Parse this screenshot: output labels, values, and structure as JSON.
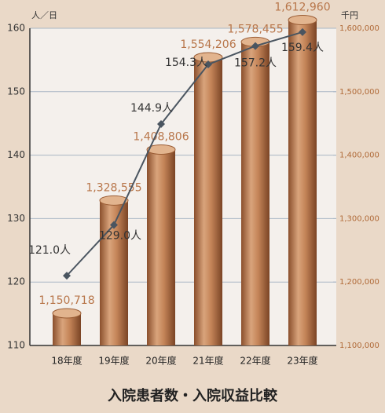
{
  "chart_data": {
    "type": "combo",
    "title": "入院患者数・入院収益比較",
    "y_axis_label": "人／日",
    "y2_axis_label": "千円",
    "categories": [
      "18年度",
      "19年度",
      "20年度",
      "21年度",
      "22年度",
      "23年度"
    ],
    "ylim": [
      110,
      160
    ],
    "yticks": [
      110,
      120,
      130,
      140,
      150,
      160
    ],
    "y2lim": [
      1100000,
      1600000
    ],
    "y2ticks": [
      {
        "value": 1100000,
        "label": "1,100,000"
      },
      {
        "value": 1200000,
        "label": "1,200,000"
      },
      {
        "value": 1300000,
        "label": "1,300,000"
      },
      {
        "value": 1400000,
        "label": "1,400,000"
      },
      {
        "value": 1500000,
        "label": "1,500,000"
      },
      {
        "value": 1600000,
        "label": "1,600,000"
      }
    ],
    "grid": true,
    "series": [
      {
        "type": "bar",
        "axis": "y2",
        "color": "#b8764a",
        "values": [
          1150718,
          1328555,
          1408806,
          1554206,
          1578455,
          1612960
        ],
        "value_labels": [
          "1,150,718",
          "1,328,555",
          "1,408,806",
          "1,554,206",
          "1,578,455",
          "1,612,960"
        ]
      },
      {
        "type": "line",
        "axis": "y",
        "color": "#4a5560",
        "values": [
          121.0,
          129.0,
          144.9,
          154.3,
          157.2,
          159.4
        ],
        "value_labels": [
          "121.0人",
          "129.0人",
          "144.9人",
          "154.3人",
          "157.2人",
          "159.4人"
        ]
      }
    ]
  }
}
